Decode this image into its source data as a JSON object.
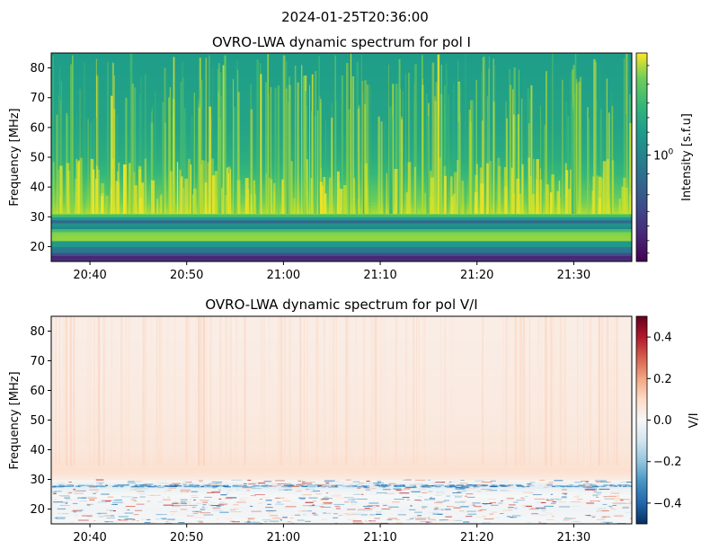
{
  "figure": {
    "suptitle": "2024-01-25T20:36:00"
  },
  "chart_data": [
    {
      "type": "heatmap",
      "title": "OVRO-LWA dynamic spectrum for pol I",
      "xlabel": "",
      "ylabel": "Frequency [MHz]",
      "x_axis": "time",
      "xlim": [
        "20:36:00",
        "21:36:00"
      ],
      "ylim": [
        15,
        85
      ],
      "xticks": [
        "20:40",
        "20:50",
        "21:00",
        "21:10",
        "21:20",
        "21:30"
      ],
      "yticks": [
        20,
        30,
        40,
        50,
        60,
        70,
        80
      ],
      "colormap": "viridis",
      "colorbar": {
        "label": "Intensity [s.f.u]",
        "scale": "log",
        "tick_labels": [
          "10^0"
        ]
      },
      "frequency_profile": {
        "description_bands_mhz": [
          15,
          17,
          19,
          21,
          23,
          25,
          27,
          29,
          31,
          35,
          40,
          45,
          50,
          55,
          60,
          70,
          80,
          85
        ],
        "relative_level": [
          0.08,
          0.18,
          0.3,
          0.55,
          0.8,
          0.7,
          0.45,
          0.4,
          0.88,
          0.78,
          0.72,
          0.66,
          0.62,
          0.6,
          0.58,
          0.57,
          0.56,
          0.55
        ]
      }
    },
    {
      "type": "heatmap",
      "title": "OVRO-LWA dynamic spectrum for pol V/I",
      "xlabel": "",
      "ylabel": "Frequency [MHz]",
      "x_axis": "time",
      "xlim": [
        "20:36:00",
        "21:36:00"
      ],
      "ylim": [
        15,
        85
      ],
      "xticks": [
        "20:40",
        "20:50",
        "21:00",
        "21:10",
        "21:20",
        "21:30"
      ],
      "yticks": [
        20,
        30,
        40,
        50,
        60,
        70,
        80
      ],
      "colormap": "RdBu_r",
      "colorbar": {
        "label": "V/I",
        "range": [
          -0.5,
          0.5
        ],
        "ticks": [
          0.4,
          0.2,
          0.0,
          -0.2,
          -0.4
        ],
        "tick_labels": [
          "0.4",
          "0.2",
          "0.0",
          "−0.2",
          "−0.4"
        ]
      },
      "frequency_profile": {
        "description_bands_mhz": [
          15,
          20,
          25,
          28,
          30,
          33,
          40,
          50,
          60,
          70,
          85
        ],
        "relative_level": [
          0.0,
          -0.02,
          0.0,
          -0.06,
          0.04,
          0.08,
          0.06,
          0.05,
          0.045,
          0.04,
          0.035
        ]
      }
    }
  ]
}
